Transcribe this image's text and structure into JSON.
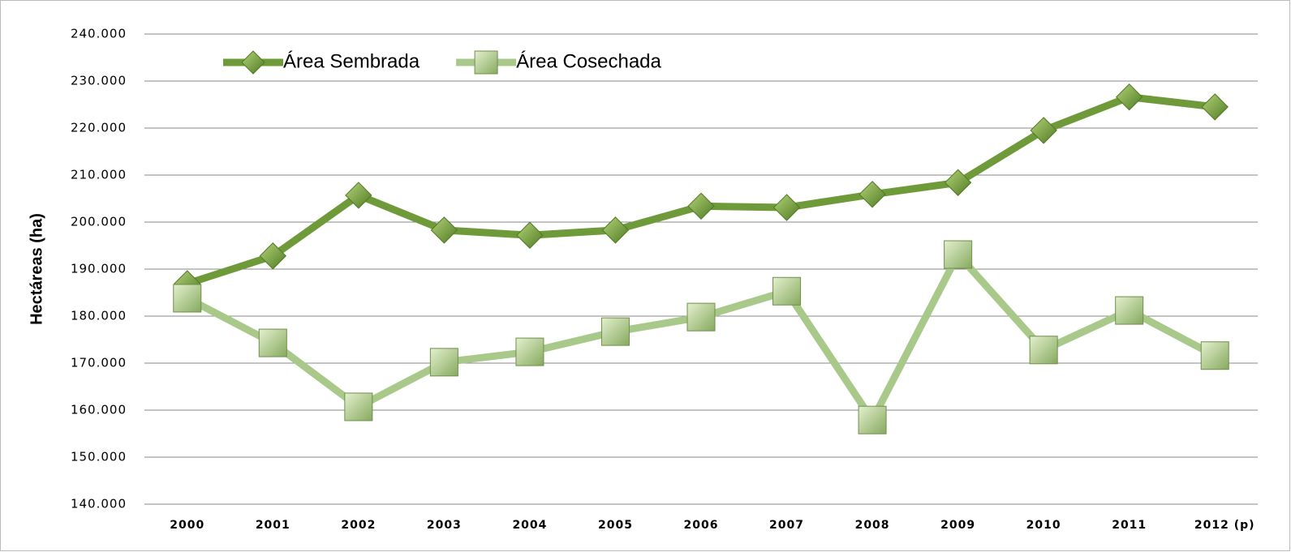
{
  "chart_data": {
    "type": "line",
    "ylabel": "Hectáreas (ha)",
    "categories": [
      "2000",
      "2001",
      "2002",
      "2003",
      "2004",
      "2005",
      "2006",
      "2007",
      "2008",
      "2009",
      "2010",
      "2011",
      "2012 (p)"
    ],
    "series": [
      {
        "name": "Área Sembrada",
        "color": "#6f9a3a",
        "marker": "diamond",
        "values": [
          186900,
          192800,
          205700,
          198300,
          197200,
          198300,
          203400,
          203100,
          205900,
          208400,
          219500,
          226600,
          224500
        ]
      },
      {
        "name": "Área Cosechada",
        "color": "#a9c98a",
        "marker": "square",
        "values": [
          183800,
          174300,
          160700,
          170200,
          172400,
          176700,
          179800,
          185300,
          157900,
          193100,
          172800,
          181200,
          171600
        ]
      }
    ],
    "ylim": [
      140000,
      240000
    ],
    "yticks": [
      {
        "value": 140000,
        "label": "140.000"
      },
      {
        "value": 150000,
        "label": "150.000"
      },
      {
        "value": 160000,
        "label": "160.000"
      },
      {
        "value": 170000,
        "label": "170.000"
      },
      {
        "value": 180000,
        "label": "180.000"
      },
      {
        "value": 190000,
        "label": "190.000"
      },
      {
        "value": 200000,
        "label": "200.000"
      },
      {
        "value": 210000,
        "label": "210.000"
      },
      {
        "value": 220000,
        "label": "220.000"
      },
      {
        "value": 230000,
        "label": "230.000"
      },
      {
        "value": 240000,
        "label": "240.000"
      }
    ],
    "grid": true,
    "legend": "top-left"
  }
}
